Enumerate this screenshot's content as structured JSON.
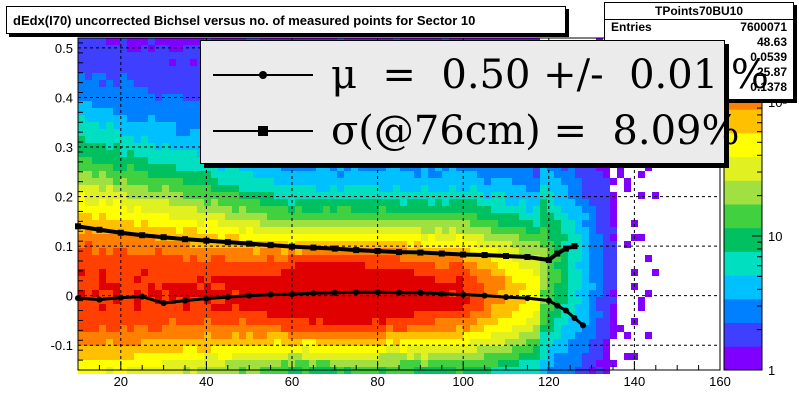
{
  "title": "dEdx(I70) uncorrected Bichsel versus no. of measured points for Sector 10",
  "stats": {
    "name": "TPoints70BU10",
    "rows": [
      {
        "label": "Entries",
        "value": "7600071"
      },
      {
        "label": "",
        "value": "48.63"
      },
      {
        "label": "",
        "value": "0.0539"
      },
      {
        "label": "",
        "value": "25.87"
      },
      {
        "label": "",
        "value": "0.1378"
      }
    ]
  },
  "fit": {
    "mu_text": "μ  =  0.50 +/-  0.01 %",
    "sigma_text": "σ(@76cm) =  8.09%"
  },
  "chart_data": {
    "type": "heatmap",
    "title": "dEdx(I70) uncorrected Bichsel versus no. of measured points for Sector 10",
    "xlabel": "",
    "ylabel": "",
    "xlim": [
      10,
      160
    ],
    "ylim": [
      -0.15,
      0.52
    ],
    "xticks": [
      20,
      40,
      60,
      80,
      100,
      120,
      140,
      160
    ],
    "yticks": [
      -0.1,
      0,
      0.1,
      0.2,
      0.3,
      0.4,
      0.5
    ],
    "ytick_labels": [
      "-0.1",
      "0",
      "0.1",
      "0.2",
      "0.3",
      "0.4",
      "0.5"
    ],
    "zscale": "log",
    "zticks": [
      1,
      10,
      100
    ],
    "ztick_labels": [
      "1",
      "10",
      "10²"
    ],
    "grid": true,
    "colors": {
      "palette": [
        "#7f00ff",
        "#3f3fff",
        "#0080ff",
        "#00c0ff",
        "#00e0c0",
        "#00c060",
        "#40d040",
        "#a0e040",
        "#e0f020",
        "#ffff00",
        "#ffc000",
        "#ff8000",
        "#ff4000",
        "#e00000"
      ],
      "mean_points": "#000000"
    },
    "series": [
      {
        "name": "sigma",
        "x": [
          10,
          15,
          20,
          25,
          30,
          35,
          40,
          45,
          50,
          55,
          60,
          65,
          70,
          75,
          80,
          85,
          90,
          95,
          100,
          105,
          110,
          115,
          120,
          122,
          124,
          126
        ],
        "values": [
          0.14,
          0.133,
          0.127,
          0.122,
          0.118,
          0.114,
          0.111,
          0.108,
          0.105,
          0.102,
          0.099,
          0.097,
          0.095,
          0.092,
          0.09,
          0.088,
          0.087,
          0.085,
          0.083,
          0.082,
          0.08,
          0.078,
          0.072,
          0.085,
          0.095,
          0.1
        ]
      },
      {
        "name": "mu",
        "x": [
          10,
          15,
          20,
          25,
          30,
          35,
          40,
          45,
          50,
          55,
          60,
          65,
          70,
          75,
          80,
          85,
          90,
          95,
          100,
          105,
          110,
          115,
          120,
          122,
          124,
          126,
          128
        ],
        "values": [
          -0.005,
          -0.008,
          -0.004,
          -0.002,
          -0.015,
          -0.01,
          -0.006,
          -0.003,
          0.0,
          0.002,
          0.003,
          0.005,
          0.006,
          0.007,
          0.007,
          0.006,
          0.006,
          0.004,
          0.002,
          0.0,
          -0.003,
          -0.005,
          -0.01,
          -0.02,
          -0.03,
          -0.045,
          -0.06
        ]
      }
    ]
  }
}
